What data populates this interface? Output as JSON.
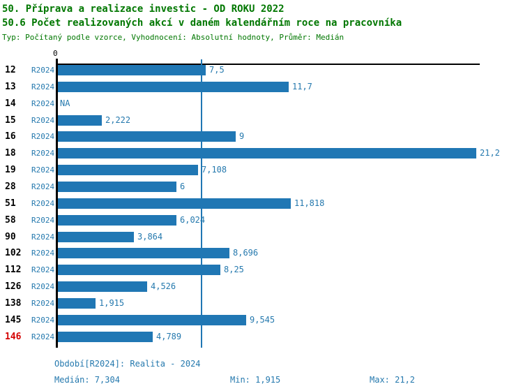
{
  "header": {
    "title_line1": "50. Příprava a realizace investic - OD ROKU 2022",
    "title_line2": "50.6 Počet realizovaných akcí v daném kalendářním roce na pracovníka",
    "subtitle": "Typ: Počítaný podle vzorce, Vyhodnocení: Absolutní hodnoty, Průměr: Medián"
  },
  "axis": {
    "zero_label": "0"
  },
  "colors": {
    "title_green": "#007700",
    "bar_blue": "#2077b4",
    "label_blue": "#2579ae",
    "highlight_red": "#d40000",
    "axis_black": "#000000"
  },
  "footer": {
    "period": "Období[R2024]: Realita - 2024",
    "median": "Medián: 7,304",
    "min": "Min: 1,915",
    "max": "Max: 21,2"
  },
  "chart_data": {
    "type": "bar",
    "orientation": "horizontal",
    "series_label": "R2024",
    "categories": [
      "12",
      "13",
      "14",
      "15",
      "16",
      "18",
      "19",
      "28",
      "51",
      "58",
      "90",
      "102",
      "112",
      "126",
      "138",
      "145",
      "146"
    ],
    "values": [
      7.5,
      11.7,
      null,
      2.222,
      9,
      21.2,
      7.108,
      6,
      11.818,
      6.024,
      3.864,
      8.696,
      8.25,
      4.526,
      1.915,
      9.545,
      4.789
    ],
    "value_labels": [
      "7,5",
      "11,7",
      "NA",
      "2,222",
      "9",
      "21,2",
      "7,108",
      "6",
      "11,818",
      "6,024",
      "3,864",
      "8,696",
      "8,25",
      "4,526",
      "1,915",
      "9,545",
      "4,789"
    ],
    "highlighted_category": "146",
    "median": 7.304,
    "min": 1.915,
    "max": 21.2,
    "xlim": [
      0,
      21.4
    ],
    "grid": false,
    "legend": "none",
    "median_line": true
  }
}
